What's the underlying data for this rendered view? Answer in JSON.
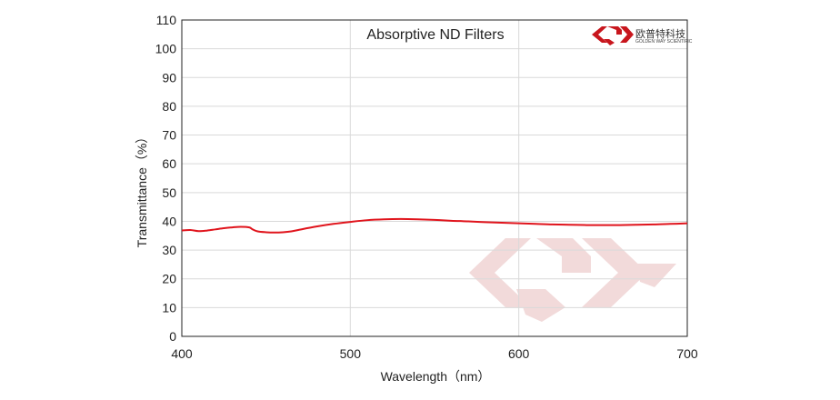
{
  "chart_data": {
    "type": "line",
    "title": "Absorptive ND Filters",
    "xlabel": "Wavelength（nm）",
    "ylabel": "Transmittance（%）",
    "xlim": [
      400,
      700
    ],
    "ylim": [
      0,
      110
    ],
    "xticks": [
      "400",
      "500",
      "600",
      "700"
    ],
    "yticks": [
      "0",
      "10",
      "20",
      "30",
      "40",
      "50",
      "60",
      "70",
      "80",
      "90",
      "100",
      "110"
    ],
    "grid": true,
    "series": [
      {
        "color": "#e0141c",
        "x": [
          400,
          405,
          410,
          415,
          420,
          425,
          430,
          435,
          440,
          442,
          445,
          450,
          455,
          460,
          465,
          470,
          480,
          490,
          500,
          510,
          520,
          530,
          540,
          550,
          560,
          570,
          580,
          590,
          600,
          610,
          620,
          630,
          640,
          650,
          660,
          670,
          680,
          690,
          700
        ],
        "y": [
          36.8,
          37.0,
          36.6,
          36.8,
          37.2,
          37.6,
          37.9,
          38.1,
          37.9,
          37.2,
          36.5,
          36.2,
          36.1,
          36.2,
          36.5,
          37.1,
          38.2,
          39.1,
          39.8,
          40.4,
          40.7,
          40.8,
          40.7,
          40.5,
          40.2,
          40.0,
          39.7,
          39.5,
          39.3,
          39.1,
          38.9,
          38.8,
          38.7,
          38.7,
          38.7,
          38.8,
          38.9,
          39.1,
          39.3
        ]
      }
    ]
  },
  "logo": {
    "name_cn": "欧普特科技",
    "name_en": "GOLDEN WAY SCIENTIFIC",
    "color": "#c8161d"
  },
  "watermark": {
    "color": "#f2dada"
  }
}
